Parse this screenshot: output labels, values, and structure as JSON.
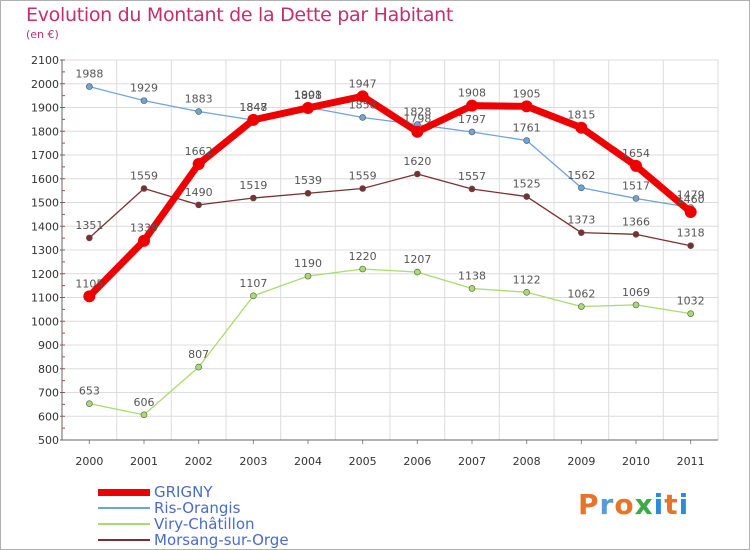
{
  "title": "Evolution du Montant de la Dette par Habitant",
  "subtitle": "(en €)",
  "brand": {
    "text": "Proxiti",
    "letter_colors": [
      "#e8742c",
      "#5a9ad8",
      "#e8742c",
      "#3fa848",
      "#2e8bd8",
      "#e8742c",
      "#2e8bd8"
    ]
  },
  "chart_data": {
    "type": "line",
    "x": [
      "2000",
      "2001",
      "2002",
      "2003",
      "2004",
      "2005",
      "2006",
      "2007",
      "2008",
      "2009",
      "2010",
      "2011"
    ],
    "ylim": [
      500,
      2100
    ],
    "yticks": [
      500,
      600,
      700,
      800,
      900,
      1000,
      1100,
      1200,
      1300,
      1400,
      1500,
      1600,
      1700,
      1800,
      1900,
      2000,
      2100
    ],
    "grid": true,
    "legend_position": "bottom-left",
    "series": [
      {
        "name": "GRIGNY",
        "color": "#ee0000",
        "values": [
          1105,
          1339,
          1662,
          1848,
          1898,
          1947,
          1798,
          1908,
          1905,
          1815,
          1654,
          1460
        ]
      },
      {
        "name": "Ris-Orangis",
        "color": "#6fa4d8",
        "values": [
          1988,
          1929,
          1883,
          1847,
          1901,
          1858,
          1828,
          1797,
          1761,
          1562,
          1517,
          1479
        ]
      },
      {
        "name": "Viry-Châtillon",
        "color": "#a8dc6c",
        "values": [
          653,
          606,
          807,
          1107,
          1190,
          1220,
          1207,
          1138,
          1122,
          1062,
          1069,
          1032
        ]
      },
      {
        "name": "Morsang-sur-Orge",
        "color": "#7a3030",
        "values": [
          1351,
          1559,
          1490,
          1519,
          1539,
          1559,
          1620,
          1557,
          1525,
          1373,
          1366,
          1318
        ]
      }
    ]
  }
}
